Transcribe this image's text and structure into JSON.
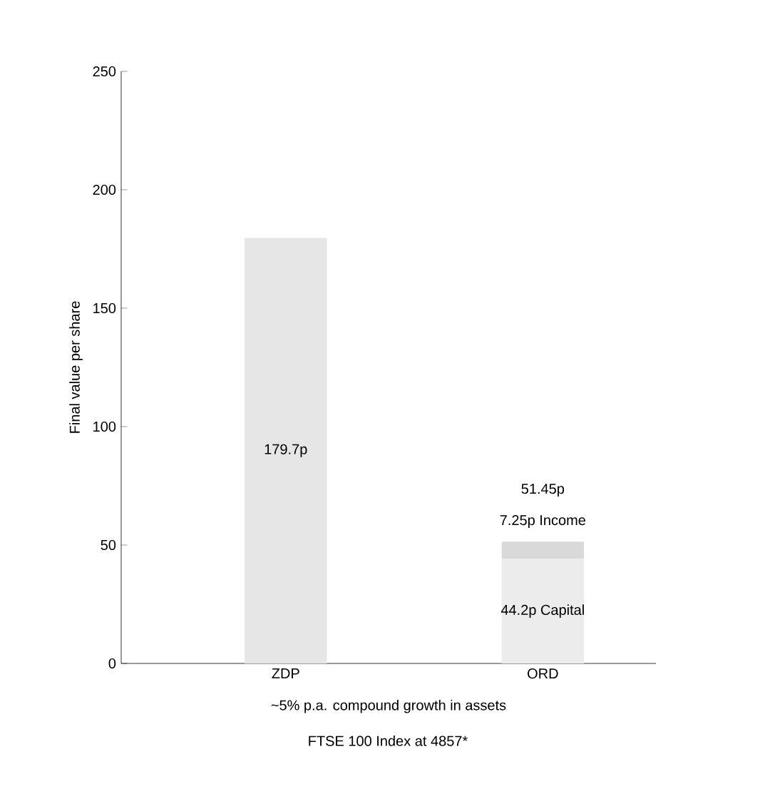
{
  "chart_data": {
    "type": "bar",
    "stacked": true,
    "categories": [
      "ZDP",
      "ORD"
    ],
    "series": [
      {
        "color": "#e6e6e6",
        "values": [
          179.7,
          null
        ],
        "value_labels": [
          "179.7p",
          null
        ]
      },
      {
        "color": "#ececec",
        "values": [
          null,
          44.2
        ],
        "value_labels": [
          null,
          "44.2p Capital"
        ]
      },
      {
        "color": "#d9d9d9",
        "values": [
          null,
          7.25
        ],
        "value_labels": [
          null,
          "7.25p Income"
        ]
      }
    ],
    "totals": [
      null,
      "51.45p"
    ],
    "ylabel": "Final value per share",
    "xlabel": "~5% p.a. compound growth in assets",
    "annotations": [
      "FTSE 100 Index at 4857*"
    ],
    "ylim": [
      0,
      250
    ],
    "yticks": [
      0,
      50,
      100,
      150,
      200,
      250
    ],
    "grid": false
  }
}
